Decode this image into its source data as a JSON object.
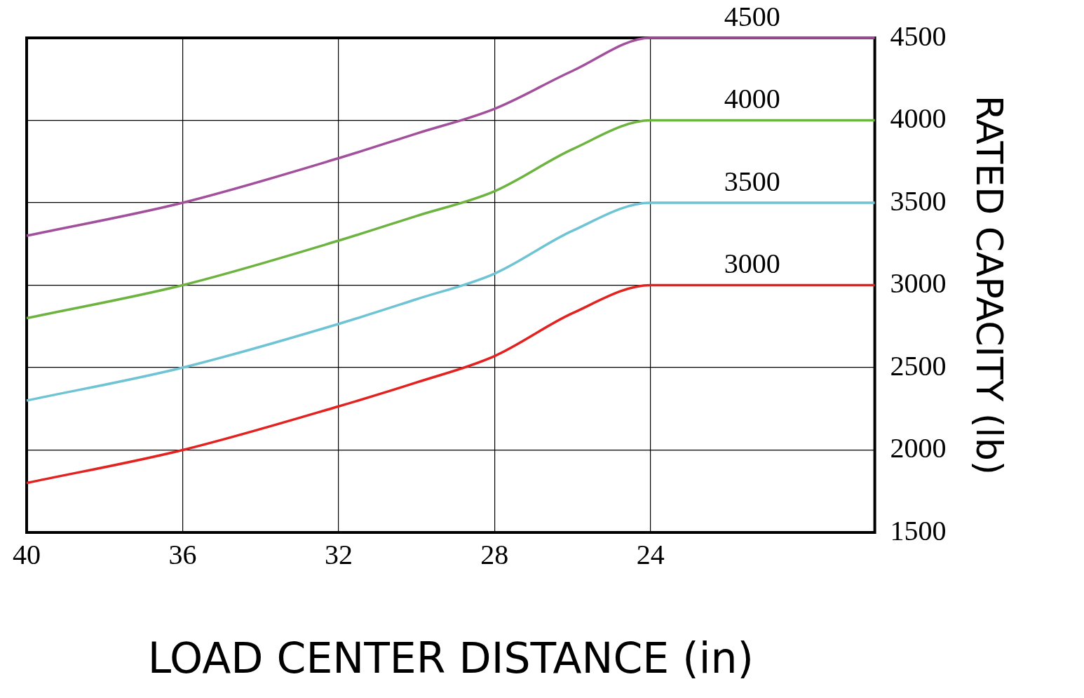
{
  "chart_data": {
    "type": "line",
    "xlabel": "LOAD CENTER DISTANCE (in)",
    "ylabel": "RATED CAPACITY (lb)",
    "xlim": [
      40,
      18.25
    ],
    "xticks": [
      40,
      36,
      32,
      28,
      24
    ],
    "ylim": [
      1500,
      4500
    ],
    "yticks": [
      1500,
      2000,
      2500,
      3000,
      3500,
      4000,
      4500
    ],
    "grid": true,
    "legend": false,
    "marker": "none",
    "line_style": "solid",
    "series": [
      {
        "name": "4500",
        "color": "#a3509c",
        "x": [
          40,
          36,
          32,
          30,
          28,
          26,
          24,
          18.25
        ],
        "values": [
          3300,
          3500,
          3770,
          3920,
          4070,
          4300,
          4500,
          4500
        ]
      },
      {
        "name": "4000",
        "color": "#6db33f",
        "x": [
          40,
          36,
          32,
          30,
          28,
          26,
          24,
          18.25
        ],
        "values": [
          2800,
          3000,
          3270,
          3420,
          3570,
          3825,
          4000,
          4000
        ]
      },
      {
        "name": "3500",
        "color": "#6ec4d4",
        "x": [
          40,
          36,
          32,
          30,
          28,
          26,
          24,
          18.25
        ],
        "values": [
          2300,
          2500,
          2765,
          2915,
          3070,
          3330,
          3500,
          3500
        ]
      },
      {
        "name": "3000",
        "color": "#e3211f",
        "x": [
          40,
          36,
          32,
          30,
          28,
          26,
          24,
          18.25
        ],
        "values": [
          1800,
          2000,
          2265,
          2410,
          2570,
          2830,
          3000,
          3000
        ]
      }
    ]
  }
}
